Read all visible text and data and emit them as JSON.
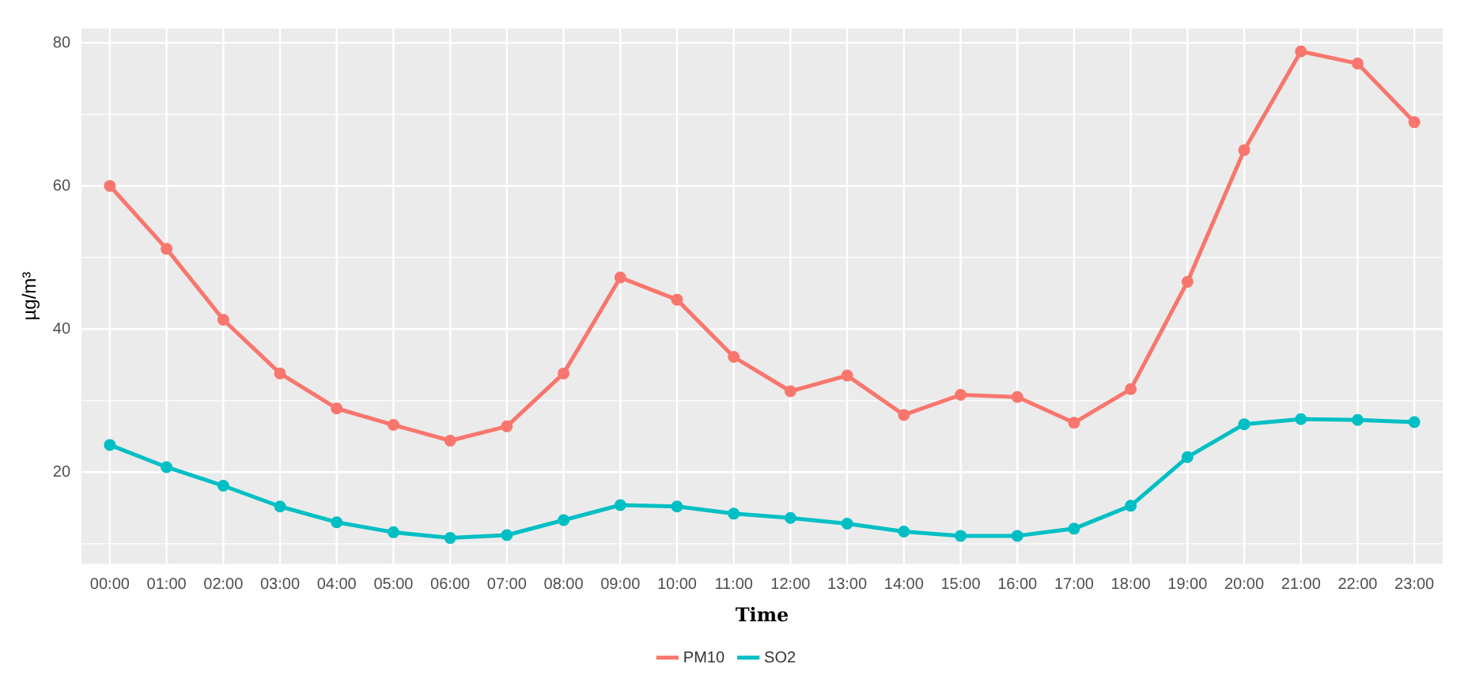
{
  "chart_data": {
    "type": "line",
    "xlabel": "Time",
    "ylabel": "µg/m³",
    "categories": [
      "00:00",
      "01:00",
      "02:00",
      "03:00",
      "04:00",
      "05:00",
      "06:00",
      "07:00",
      "08:00",
      "09:00",
      "10:00",
      "11:00",
      "12:00",
      "13:00",
      "14:00",
      "15:00",
      "16:00",
      "17:00",
      "18:00",
      "19:00",
      "20:00",
      "21:00",
      "22:00",
      "23:00"
    ],
    "series": [
      {
        "name": "PM10",
        "color": "#f8766d",
        "values": [
          60,
          51.2,
          41.3,
          33.8,
          28.9,
          26.6,
          24.4,
          26.4,
          33.8,
          47.2,
          44.1,
          36.1,
          31.3,
          33.5,
          28,
          30.8,
          30.5,
          26.9,
          31.6,
          46.6,
          65,
          78.8,
          77.1,
          68.9
        ]
      },
      {
        "name": "SO2",
        "color": "#00bfc4",
        "values": [
          23.8,
          20.7,
          18.1,
          15.2,
          13,
          11.6,
          10.8,
          11.2,
          13.3,
          15.4,
          15.2,
          14.2,
          13.6,
          12.8,
          11.7,
          11.1,
          11.1,
          12.1,
          15.3,
          22.1,
          26.7,
          27.4,
          27.3,
          27
        ]
      }
    ],
    "ylim": [
      7.2,
      82
    ],
    "yticks": [
      20,
      40,
      60,
      80
    ],
    "grid": true,
    "legend": "bottom",
    "marker": "circle",
    "line_style": "solid"
  }
}
